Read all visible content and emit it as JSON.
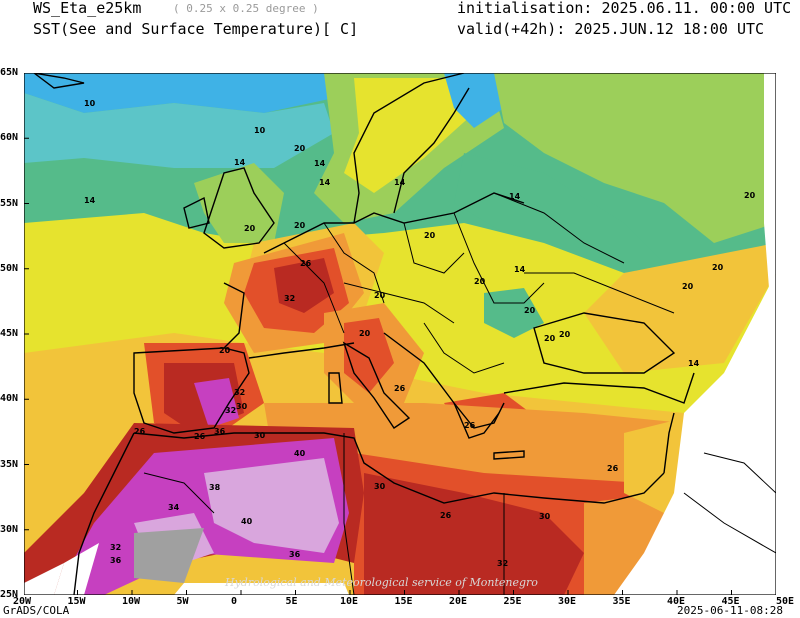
{
  "header": {
    "model": "WS_Eta_e25km",
    "resolution": "( 0.25 x 0.25 degree )",
    "field": "SST(See and Surface Temperature)[ C]",
    "init": "initialisation: 2025.06.11. 00:00 UTC",
    "valid": "valid(+42h): 2025.JUN.12 18:00 UTC"
  },
  "map": {
    "lat_labels": [
      "65N",
      "60N",
      "55N",
      "50N",
      "45N",
      "40N",
      "35N",
      "30N",
      "25N"
    ],
    "lon_labels": [
      "20W",
      "15W",
      "10W",
      "5W",
      "0",
      "5E",
      "10E",
      "15E",
      "20E",
      "25E",
      "30E",
      "35E",
      "40E",
      "45E",
      "50E"
    ],
    "contour_labels": [
      "10",
      "10",
      "14",
      "14",
      "20",
      "14",
      "14",
      "14",
      "20",
      "20",
      "20",
      "20",
      "20",
      "26",
      "32",
      "20",
      "20",
      "14",
      "14",
      "20",
      "20",
      "20",
      "32",
      "32",
      "30",
      "26",
      "26",
      "36",
      "30",
      "40",
      "38",
      "40",
      "36",
      "34",
      "32",
      "36",
      "30",
      "30",
      "26",
      "32",
      "26",
      "26",
      "26",
      "20",
      "14",
      "20",
      "20"
    ],
    "watermark": "Hydrological and Meteorological service of Montenegro"
  },
  "footer": {
    "left": "GrADS/COLA",
    "right": "2025-06-11-08:28"
  },
  "colors": {
    "c6": "#3fb2e6",
    "c10": "#5cc5c8",
    "c14": "#55bb8a",
    "c17": "#9ccf5a",
    "c20": "#e6e32e",
    "c23": "#f2c43a",
    "c26": "#f09a38",
    "c29": "#e2502a",
    "c32": "#b92a22",
    "c35": "#c640c0",
    "c38": "#d9a6dd",
    "c41": "#a0a0a0"
  }
}
